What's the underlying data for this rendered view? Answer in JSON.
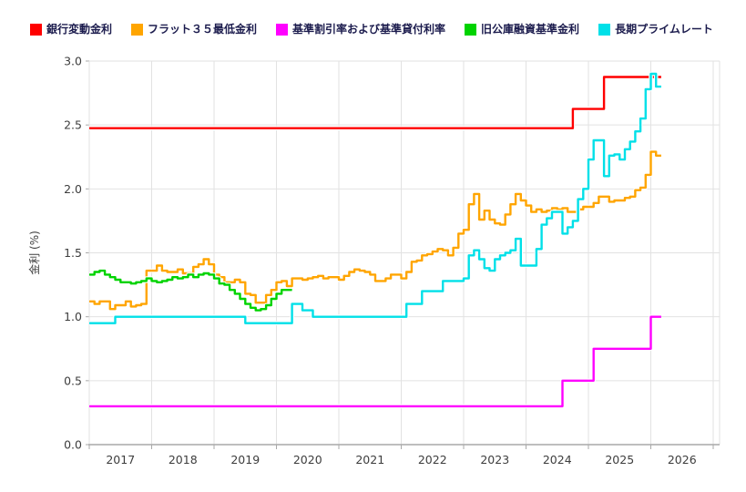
{
  "legend": {
    "items": [
      {
        "label": "銀行変動金利",
        "color": "#ff0000"
      },
      {
        "label": "フラット３５最低金利",
        "color": "#ffa500"
      },
      {
        "label": "基準割引率および基準貸付利率",
        "color": "#ff00ff"
      },
      {
        "label": "旧公庫融資基準金利",
        "color": "#00d300"
      },
      {
        "label": "長期プライムレート",
        "color": "#00e0e8"
      }
    ]
  },
  "y_axis": {
    "title": "金利 (%)",
    "tick_labels": [
      "0.0",
      "0.5",
      "1.0",
      "1.5",
      "2.0",
      "2.5",
      "3.0"
    ],
    "min": 0.0,
    "max": 3.0
  },
  "x_axis": {
    "tick_labels": [
      "2017",
      "2018",
      "2019",
      "2020",
      "2021",
      "2022",
      "2023",
      "2024",
      "2025",
      "2026"
    ]
  },
  "chart_data": {
    "type": "line",
    "line_style": "step-after",
    "x_start": "2017-01",
    "x_interval": "month",
    "n_points": 110,
    "ylabel": "金利 (%)",
    "ylim": [
      0.0,
      3.0
    ],
    "grid": true,
    "legend_position": "top",
    "series": [
      {
        "name": "銀行変動金利",
        "color": "#ff0000",
        "values": [
          2.475,
          2.475,
          2.475,
          2.475,
          2.475,
          2.475,
          2.475,
          2.475,
          2.475,
          2.475,
          2.475,
          2.475,
          2.475,
          2.475,
          2.475,
          2.475,
          2.475,
          2.475,
          2.475,
          2.475,
          2.475,
          2.475,
          2.475,
          2.475,
          2.475,
          2.475,
          2.475,
          2.475,
          2.475,
          2.475,
          2.475,
          2.475,
          2.475,
          2.475,
          2.475,
          2.475,
          2.475,
          2.475,
          2.475,
          2.475,
          2.475,
          2.475,
          2.475,
          2.475,
          2.475,
          2.475,
          2.475,
          2.475,
          2.475,
          2.475,
          2.475,
          2.475,
          2.475,
          2.475,
          2.475,
          2.475,
          2.475,
          2.475,
          2.475,
          2.475,
          2.475,
          2.475,
          2.475,
          2.475,
          2.475,
          2.475,
          2.475,
          2.475,
          2.475,
          2.475,
          2.475,
          2.475,
          2.475,
          2.475,
          2.475,
          2.475,
          2.475,
          2.475,
          2.475,
          2.475,
          2.475,
          2.475,
          2.475,
          2.475,
          2.475,
          2.475,
          2.475,
          2.475,
          2.475,
          2.475,
          2.475,
          2.475,
          2.475,
          2.625,
          2.625,
          2.625,
          2.625,
          2.625,
          2.625,
          2.875,
          2.875,
          2.875,
          2.875,
          2.875,
          2.875,
          2.875,
          2.875,
          2.875,
          2.875,
          2.875
        ]
      },
      {
        "name": "フラット３５最低金利",
        "color": "#ffa500",
        "values": [
          1.12,
          1.1,
          1.12,
          1.12,
          1.06,
          1.09,
          1.09,
          1.12,
          1.08,
          1.09,
          1.1,
          1.36,
          1.36,
          1.4,
          1.36,
          1.35,
          1.35,
          1.37,
          1.34,
          1.34,
          1.39,
          1.41,
          1.45,
          1.41,
          1.33,
          1.31,
          1.27,
          1.27,
          1.29,
          1.27,
          1.18,
          1.17,
          1.11,
          1.11,
          1.17,
          1.21,
          1.27,
          1.28,
          1.24,
          1.3,
          1.3,
          1.29,
          1.3,
          1.31,
          1.32,
          1.3,
          1.31,
          1.31,
          1.29,
          1.32,
          1.35,
          1.37,
          1.36,
          1.35,
          1.33,
          1.28,
          1.28,
          1.3,
          1.33,
          1.33,
          1.3,
          1.35,
          1.43,
          1.44,
          1.48,
          1.49,
          1.51,
          1.53,
          1.52,
          1.48,
          1.54,
          1.65,
          1.68,
          1.88,
          1.96,
          1.76,
          1.83,
          1.76,
          1.73,
          1.72,
          1.8,
          1.88,
          1.96,
          1.91,
          1.87,
          1.82,
          1.84,
          1.82,
          1.83,
          1.85,
          1.84,
          1.85,
          1.82,
          1.82,
          1.84,
          1.86,
          1.86,
          1.89,
          1.94,
          1.94,
          1.9,
          1.91,
          1.91,
          1.93,
          1.94,
          1.99,
          2.01,
          2.11,
          2.29,
          2.26
        ]
      },
      {
        "name": "基準割引率および基準貸付利率",
        "color": "#ff00ff",
        "values": [
          0.3,
          0.3,
          0.3,
          0.3,
          0.3,
          0.3,
          0.3,
          0.3,
          0.3,
          0.3,
          0.3,
          0.3,
          0.3,
          0.3,
          0.3,
          0.3,
          0.3,
          0.3,
          0.3,
          0.3,
          0.3,
          0.3,
          0.3,
          0.3,
          0.3,
          0.3,
          0.3,
          0.3,
          0.3,
          0.3,
          0.3,
          0.3,
          0.3,
          0.3,
          0.3,
          0.3,
          0.3,
          0.3,
          0.3,
          0.3,
          0.3,
          0.3,
          0.3,
          0.3,
          0.3,
          0.3,
          0.3,
          0.3,
          0.3,
          0.3,
          0.3,
          0.3,
          0.3,
          0.3,
          0.3,
          0.3,
          0.3,
          0.3,
          0.3,
          0.3,
          0.3,
          0.3,
          0.3,
          0.3,
          0.3,
          0.3,
          0.3,
          0.3,
          0.3,
          0.3,
          0.3,
          0.3,
          0.3,
          0.3,
          0.3,
          0.3,
          0.3,
          0.3,
          0.3,
          0.3,
          0.3,
          0.3,
          0.3,
          0.3,
          0.3,
          0.3,
          0.3,
          0.3,
          0.3,
          0.3,
          0.3,
          0.5,
          0.5,
          0.5,
          0.5,
          0.5,
          0.5,
          0.75,
          0.75,
          0.75,
          0.75,
          0.75,
          0.75,
          0.75,
          0.75,
          0.75,
          0.75,
          0.75,
          1.0,
          1.0
        ]
      },
      {
        "name": "旧公庫融資基準金利",
        "color": "#00d300",
        "values": [
          1.33,
          1.35,
          1.36,
          1.33,
          1.31,
          1.29,
          1.27,
          1.27,
          1.26,
          1.27,
          1.28,
          1.3,
          1.28,
          1.27,
          1.28,
          1.29,
          1.31,
          1.3,
          1.31,
          1.33,
          1.31,
          1.33,
          1.34,
          1.33,
          1.3,
          1.26,
          1.25,
          1.21,
          1.18,
          1.14,
          1.1,
          1.07,
          1.05,
          1.06,
          1.09,
          1.14,
          1.18,
          1.21,
          1.21,
          null,
          null,
          null,
          null,
          null,
          null,
          null,
          null,
          null,
          null,
          null,
          null,
          null,
          null,
          null,
          null,
          null,
          null,
          null,
          null,
          null,
          null,
          null,
          null,
          null,
          null,
          null,
          null,
          null,
          null,
          null,
          null,
          null,
          null,
          null,
          null,
          null,
          null,
          null,
          null,
          null,
          null,
          null,
          null,
          null,
          null,
          null,
          null,
          null,
          null,
          null,
          null,
          null,
          null,
          null,
          null,
          null,
          null,
          null,
          null,
          null,
          null,
          null,
          null,
          null,
          null,
          null,
          null,
          null,
          null,
          null
        ]
      },
      {
        "name": "長期プライムレート",
        "color": "#00e0e8",
        "values": [
          0.95,
          0.95,
          0.95,
          0.95,
          0.95,
          1.0,
          1.0,
          1.0,
          1.0,
          1.0,
          1.0,
          1.0,
          1.0,
          1.0,
          1.0,
          1.0,
          1.0,
          1.0,
          1.0,
          1.0,
          1.0,
          1.0,
          1.0,
          1.0,
          1.0,
          1.0,
          1.0,
          1.0,
          1.0,
          1.0,
          0.95,
          0.95,
          0.95,
          0.95,
          0.95,
          0.95,
          0.95,
          0.95,
          0.95,
          1.1,
          1.1,
          1.05,
          1.05,
          1.0,
          1.0,
          1.0,
          1.0,
          1.0,
          1.0,
          1.0,
          1.0,
          1.0,
          1.0,
          1.0,
          1.0,
          1.0,
          1.0,
          1.0,
          1.0,
          1.0,
          1.0,
          1.1,
          1.1,
          1.1,
          1.2,
          1.2,
          1.2,
          1.2,
          1.28,
          1.28,
          1.28,
          1.28,
          1.3,
          1.48,
          1.52,
          1.45,
          1.38,
          1.36,
          1.45,
          1.48,
          1.5,
          1.52,
          1.61,
          1.4,
          1.4,
          1.4,
          1.53,
          1.72,
          1.77,
          1.82,
          1.82,
          1.65,
          1.7,
          1.75,
          1.92,
          2.0,
          2.23,
          2.38,
          2.38,
          2.1,
          2.26,
          2.27,
          2.23,
          2.31,
          2.37,
          2.45,
          2.55,
          2.78,
          2.9,
          2.8
        ]
      }
    ]
  }
}
